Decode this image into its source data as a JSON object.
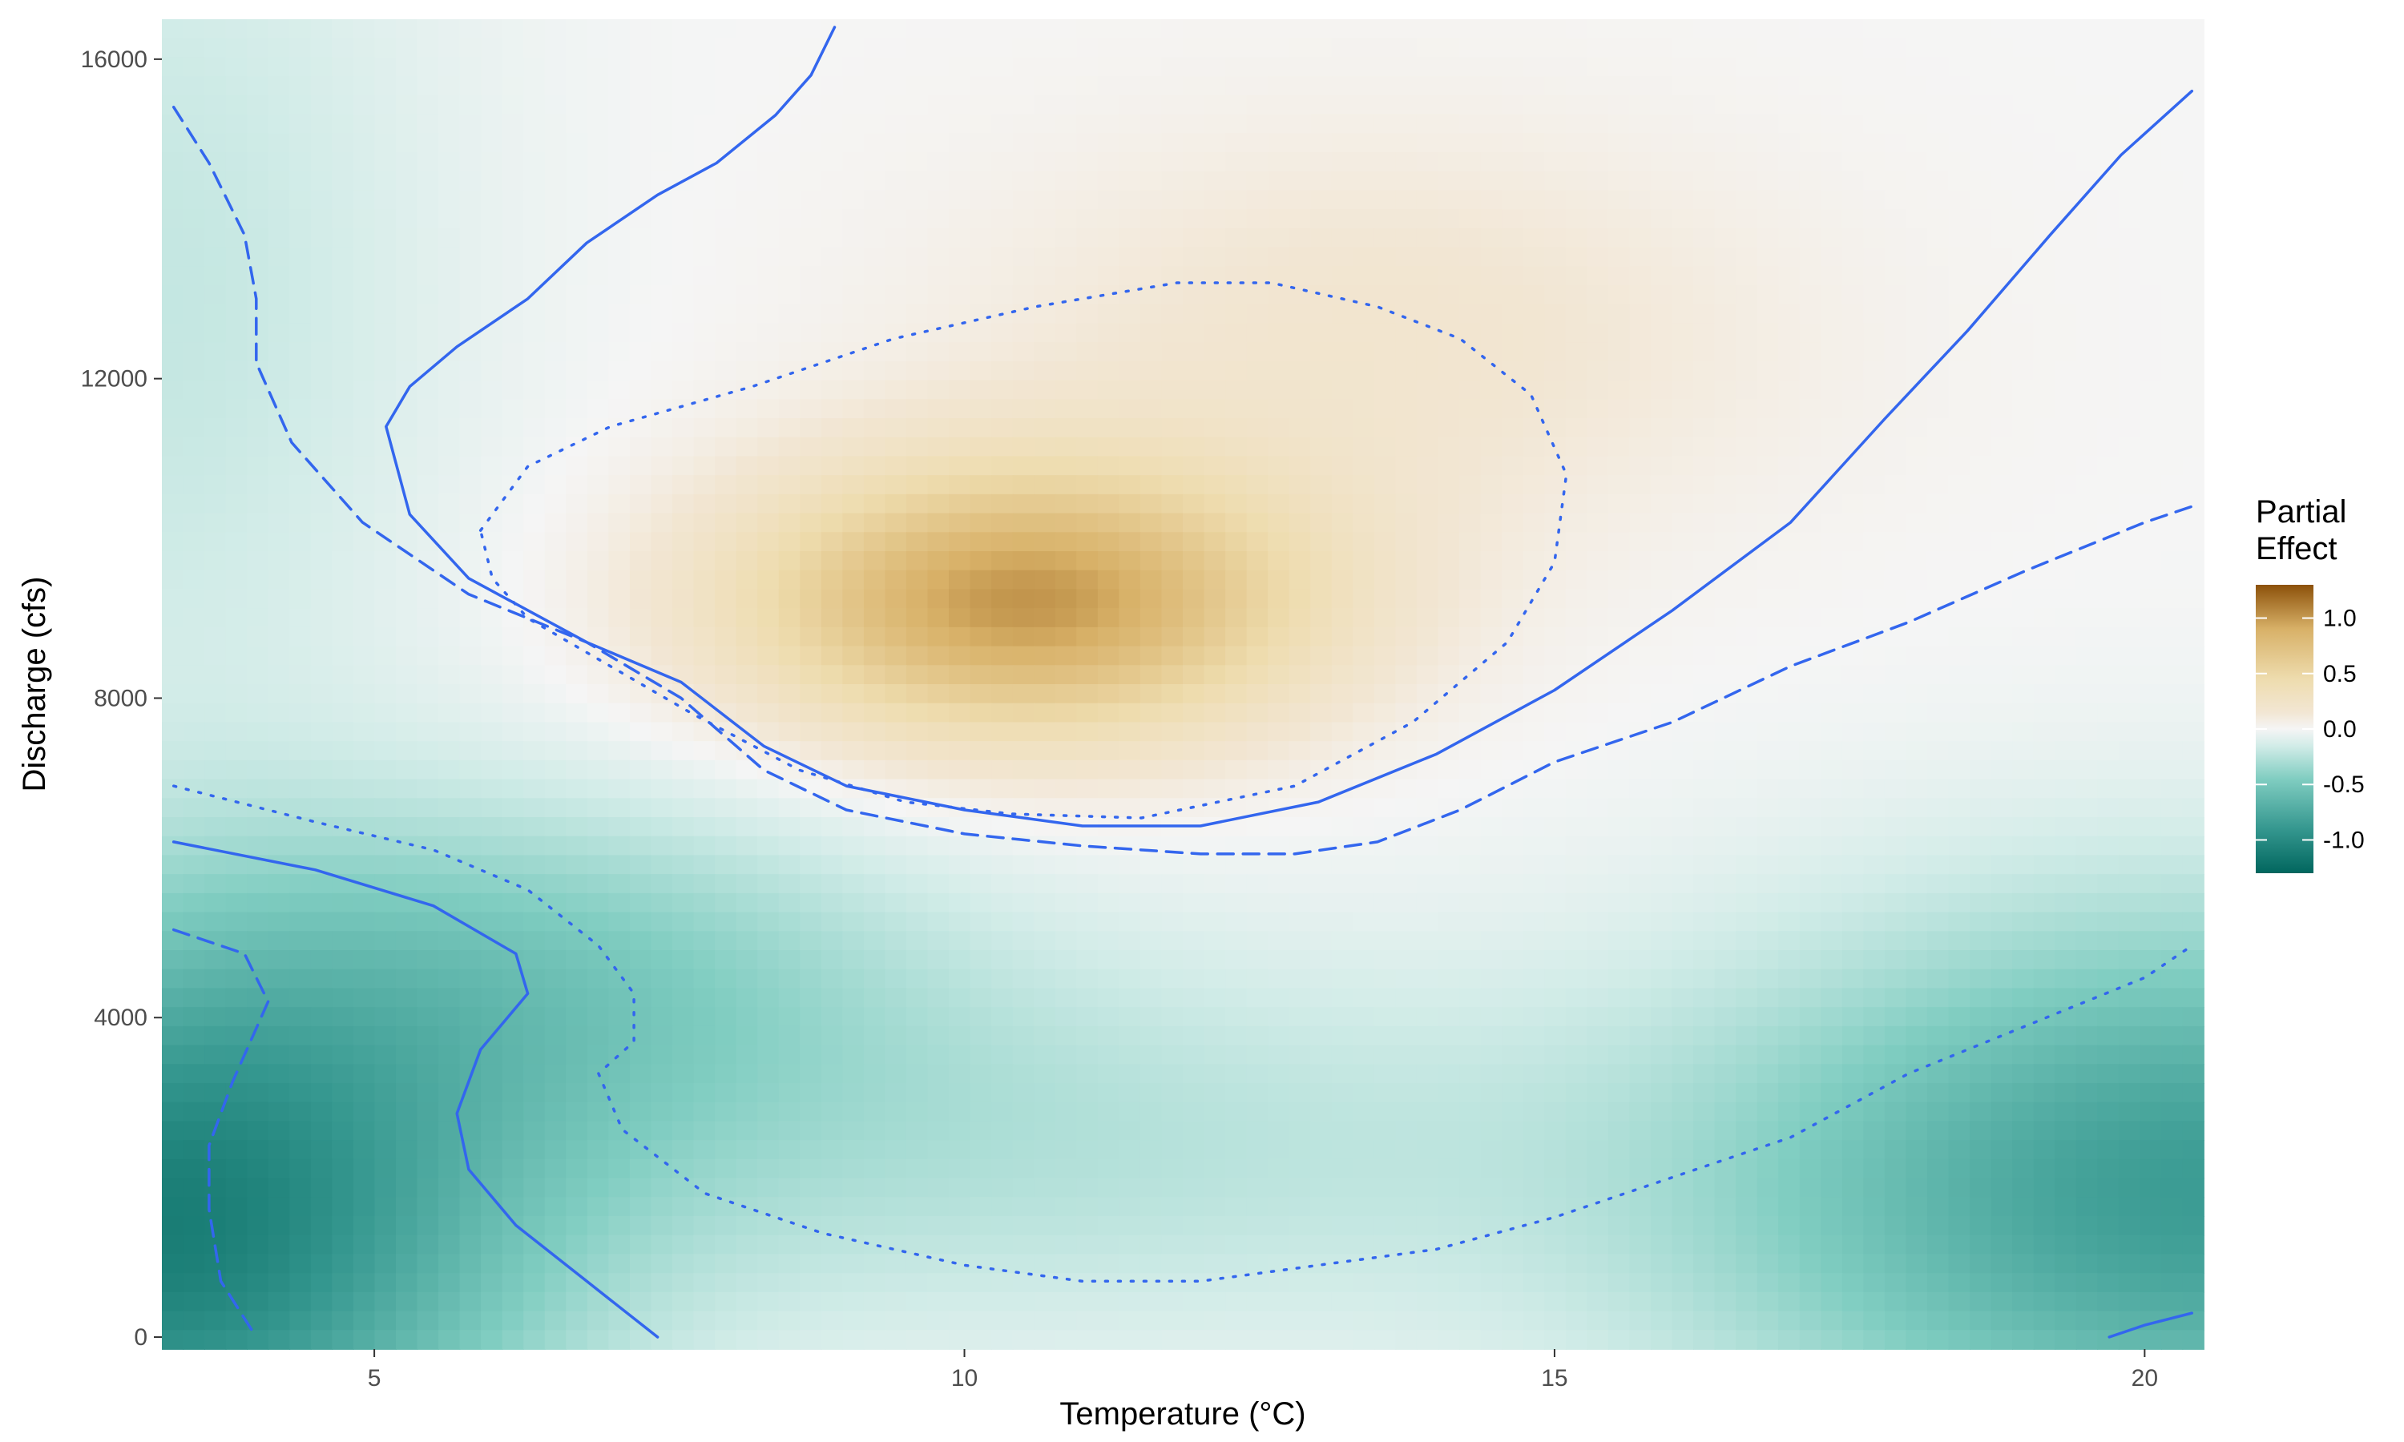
{
  "chart_data": {
    "type": "heatmap",
    "title": "",
    "xlabel": "Temperature (°C)",
    "ylabel": "Discharge (cfs)",
    "xlim": [
      3.2,
      20.5
    ],
    "ylim": [
      -150,
      16500
    ],
    "x_ticks": [
      5,
      10,
      15,
      20
    ],
    "x_tick_labels": [
      "5",
      "10",
      "15",
      "20"
    ],
    "y_ticks": [
      0,
      4000,
      8000,
      12000,
      16000
    ],
    "y_tick_labels": [
      "0",
      "4000",
      "8000",
      "12000",
      "16000"
    ],
    "grid": false,
    "legend": {
      "title_lines": [
        "Partial",
        "Effect"
      ],
      "placement": "right",
      "range": [
        -1.3,
        1.3
      ],
      "ticks": [
        1.0,
        0.5,
        0.0,
        -0.5,
        -1.0
      ],
      "tick_labels": [
        "1.0",
        "0.5",
        "0.0",
        "-0.5",
        "-1.0"
      ]
    },
    "color_scale": {
      "low": "#01665e",
      "mid": "#f5f5f5",
      "high": "#8c510a",
      "stops": [
        {
          "value": -1.3,
          "color": "#01665e"
        },
        {
          "value": -0.9,
          "color": "#35978f"
        },
        {
          "value": -0.45,
          "color": "#80cdc1"
        },
        {
          "value": -0.15,
          "color": "#d2ece8"
        },
        {
          "value": 0.0,
          "color": "#f5f5f5"
        },
        {
          "value": 0.15,
          "color": "#f2e6d3"
        },
        {
          "value": 0.45,
          "color": "#eedcae"
        },
        {
          "value": 0.9,
          "color": "#d8b168"
        },
        {
          "value": 1.3,
          "color": "#8c510a"
        }
      ]
    },
    "contour_color": "#3366ee",
    "contours": [
      {
        "style": "dashed",
        "points": [
          [
            3.3,
            15400
          ],
          [
            3.6,
            14700
          ],
          [
            3.9,
            13800
          ],
          [
            4.0,
            13000
          ],
          [
            4.0,
            12200
          ],
          [
            4.3,
            11200
          ],
          [
            4.9,
            10200
          ],
          [
            5.8,
            9300
          ],
          [
            6.8,
            8700
          ],
          [
            7.6,
            8000
          ],
          [
            8.3,
            7100
          ],
          [
            9.0,
            6600
          ],
          [
            10.0,
            6300
          ],
          [
            11.0,
            6150
          ],
          [
            12.0,
            6050
          ],
          [
            12.8,
            6050
          ],
          [
            13.5,
            6200
          ],
          [
            14.2,
            6600
          ],
          [
            15.0,
            7200
          ],
          [
            16.0,
            7700
          ],
          [
            17.0,
            8400
          ],
          [
            18.0,
            8950
          ],
          [
            19.0,
            9600
          ],
          [
            20.0,
            10200
          ],
          [
            20.4,
            10400
          ]
        ]
      },
      {
        "style": "solid",
        "points": [
          [
            8.9,
            16400
          ],
          [
            8.7,
            15800
          ],
          [
            8.4,
            15300
          ],
          [
            7.9,
            14700
          ],
          [
            7.4,
            14300
          ],
          [
            6.8,
            13700
          ],
          [
            6.3,
            13000
          ],
          [
            5.7,
            12400
          ],
          [
            5.3,
            11900
          ],
          [
            5.1,
            11400
          ],
          [
            5.3,
            10300
          ],
          [
            5.8,
            9500
          ],
          [
            6.8,
            8700
          ],
          [
            7.6,
            8200
          ],
          [
            8.3,
            7400
          ],
          [
            9.0,
            6900
          ],
          [
            10.0,
            6600
          ],
          [
            11.0,
            6400
          ],
          [
            12.0,
            6400
          ],
          [
            13.0,
            6700
          ],
          [
            14.0,
            7300
          ],
          [
            15.0,
            8100
          ],
          [
            16.0,
            9100
          ],
          [
            17.0,
            10200
          ],
          [
            17.8,
            11500
          ],
          [
            18.5,
            12600
          ],
          [
            19.2,
            13800
          ],
          [
            19.8,
            14800
          ],
          [
            20.4,
            15600
          ]
        ]
      },
      {
        "style": "dotted",
        "points": [
          [
            5.9,
            10100
          ],
          [
            6.3,
            10900
          ],
          [
            7.0,
            11400
          ],
          [
            8.2,
            11900
          ],
          [
            9.4,
            12500
          ],
          [
            10.6,
            12900
          ],
          [
            11.8,
            13200
          ],
          [
            12.6,
            13200
          ],
          [
            13.5,
            12900
          ],
          [
            14.2,
            12500
          ],
          [
            14.8,
            11800
          ],
          [
            15.1,
            10800
          ],
          [
            15.0,
            9700
          ],
          [
            14.6,
            8700
          ],
          [
            13.8,
            7700
          ],
          [
            12.8,
            6900
          ],
          [
            11.5,
            6500
          ],
          [
            10.4,
            6550
          ],
          [
            9.5,
            6700
          ],
          [
            8.6,
            7100
          ],
          [
            7.7,
            7800
          ],
          [
            7.0,
            8400
          ],
          [
            6.3,
            9000
          ],
          [
            6.0,
            9500
          ],
          [
            5.9,
            10100
          ]
        ]
      },
      {
        "style": "dotted",
        "points": [
          [
            3.3,
            6900
          ],
          [
            4.5,
            6450
          ],
          [
            5.5,
            6100
          ],
          [
            6.3,
            5600
          ],
          [
            6.9,
            4900
          ],
          [
            7.2,
            4300
          ],
          [
            7.2,
            3700
          ],
          [
            6.9,
            3300
          ],
          [
            7.1,
            2600
          ],
          [
            7.8,
            1800
          ],
          [
            8.8,
            1300
          ],
          [
            10.0,
            900
          ],
          [
            11.0,
            700
          ],
          [
            12.0,
            700
          ],
          [
            13.0,
            900
          ],
          [
            14.0,
            1100
          ],
          [
            15.0,
            1500
          ],
          [
            16.0,
            2000
          ],
          [
            17.0,
            2500
          ],
          [
            18.0,
            3300
          ],
          [
            19.0,
            3900
          ],
          [
            20.0,
            4500
          ],
          [
            20.4,
            4900
          ]
        ]
      },
      {
        "style": "solid",
        "points": [
          [
            3.3,
            6200
          ],
          [
            4.5,
            5850
          ],
          [
            5.5,
            5400
          ],
          [
            6.2,
            4800
          ],
          [
            6.3,
            4300
          ],
          [
            5.9,
            3600
          ],
          [
            5.7,
            2800
          ],
          [
            5.8,
            2100
          ],
          [
            6.2,
            1400
          ],
          [
            6.8,
            700
          ],
          [
            7.4,
            0
          ]
        ]
      },
      {
        "style": "dashed",
        "points": [
          [
            3.3,
            5100
          ],
          [
            3.9,
            4800
          ],
          [
            4.1,
            4200
          ],
          [
            3.8,
            3200
          ],
          [
            3.6,
            2400
          ],
          [
            3.6,
            1600
          ],
          [
            3.7,
            700
          ],
          [
            4.0,
            0
          ]
        ]
      },
      {
        "style": "solid",
        "points": [
          [
            19.7,
            0
          ],
          [
            20.0,
            150
          ],
          [
            20.4,
            300
          ]
        ]
      }
    ]
  }
}
